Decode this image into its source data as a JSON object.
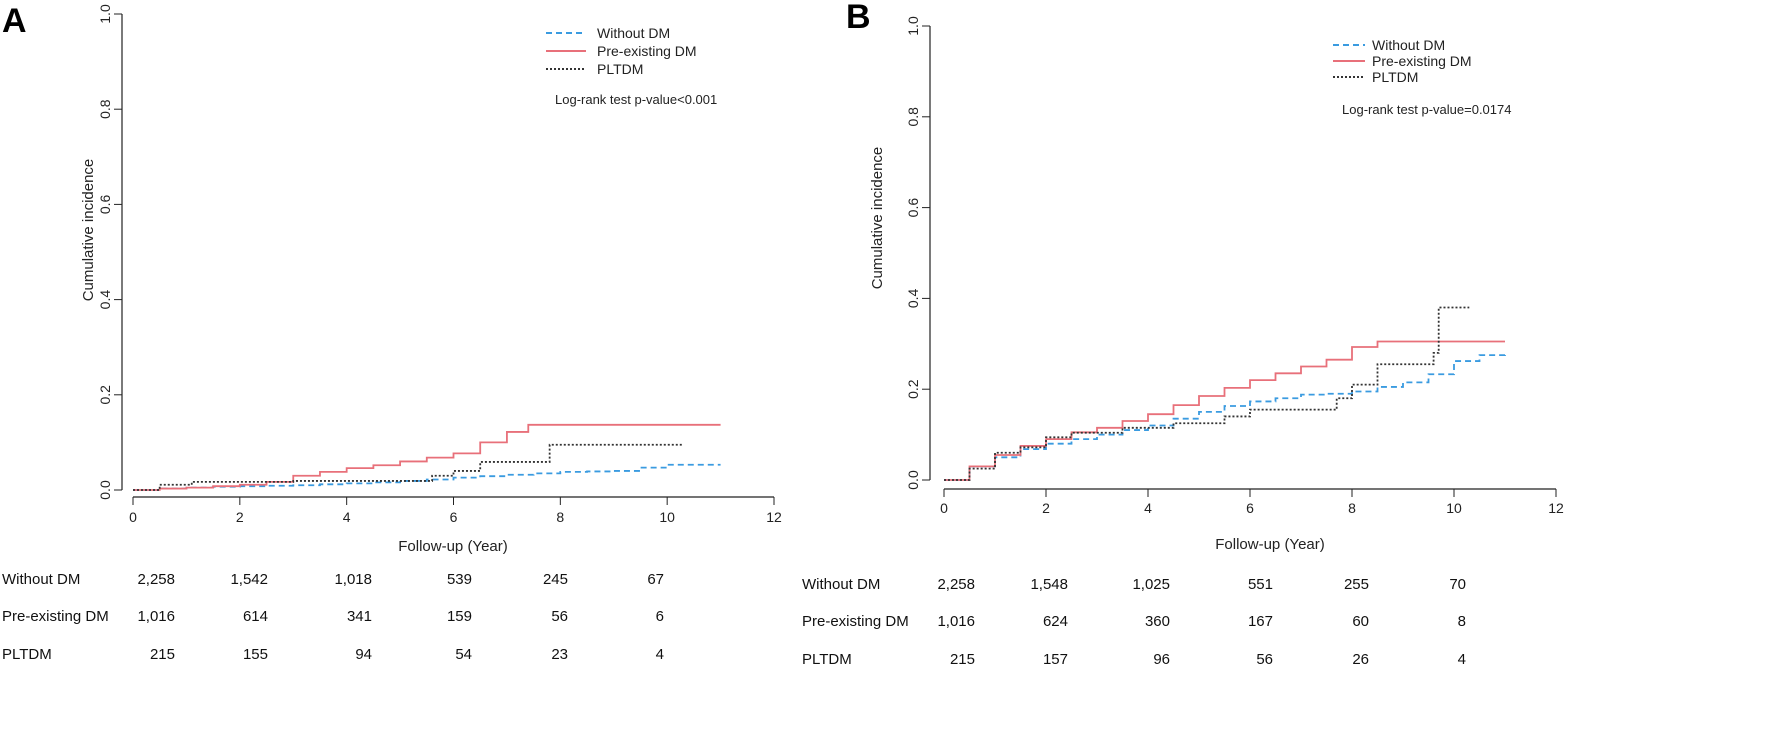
{
  "chart_data": [
    {
      "type": "line",
      "panel_label": "A",
      "xlabel": "Follow-up (Year)",
      "ylabel": "Cumulative incidence",
      "xlim": [
        0,
        12
      ],
      "ylim": [
        0,
        1.0
      ],
      "x_ticks": [
        "0",
        "2",
        "4",
        "6",
        "8",
        "10",
        "12"
      ],
      "y_ticks": [
        "0.0",
        "0.2",
        "0.4",
        "0.6",
        "0.8",
        "1.0"
      ],
      "grid": false,
      "legend_position": "top-right",
      "annotation": "Log-rank test p-value<0.001",
      "series": [
        {
          "name": "Without DM",
          "color": "#3a9be0",
          "dash": "dashed",
          "points": [
            [
              0,
              0
            ],
            [
              0.5,
              0.003
            ],
            [
              1.0,
              0.005
            ],
            [
              1.5,
              0.007
            ],
            [
              2.0,
              0.008
            ],
            [
              2.5,
              0.009
            ],
            [
              3.0,
              0.01
            ],
            [
              3.5,
              0.012
            ],
            [
              4.0,
              0.014
            ],
            [
              4.5,
              0.016
            ],
            [
              5.0,
              0.019
            ],
            [
              5.5,
              0.022
            ],
            [
              6.0,
              0.026
            ],
            [
              6.5,
              0.029
            ],
            [
              7.0,
              0.032
            ],
            [
              7.5,
              0.035
            ],
            [
              8.0,
              0.038
            ],
            [
              8.5,
              0.039
            ],
            [
              9.0,
              0.04
            ],
            [
              9.5,
              0.047
            ],
            [
              10.0,
              0.053
            ],
            [
              11.0,
              0.053
            ]
          ]
        },
        {
          "name": "Pre-existing DM",
          "color": "#e8707a",
          "dash": "solid",
          "points": [
            [
              0,
              0
            ],
            [
              0.5,
              0.003
            ],
            [
              1.0,
              0.005
            ],
            [
              1.5,
              0.008
            ],
            [
              2.0,
              0.011
            ],
            [
              2.5,
              0.017
            ],
            [
              3.0,
              0.03
            ],
            [
              3.5,
              0.038
            ],
            [
              4.0,
              0.046
            ],
            [
              4.5,
              0.052
            ],
            [
              5.0,
              0.06
            ],
            [
              5.5,
              0.068
            ],
            [
              6.0,
              0.077
            ],
            [
              6.5,
              0.1
            ],
            [
              7.0,
              0.122
            ],
            [
              7.4,
              0.137
            ],
            [
              8.0,
              0.137
            ],
            [
              9.0,
              0.137
            ],
            [
              10.0,
              0.137
            ],
            [
              11.0,
              0.137
            ]
          ]
        },
        {
          "name": "PLTDM",
          "color": "#333333",
          "dash": "dotted",
          "points": [
            [
              0,
              0
            ],
            [
              0.5,
              0.011
            ],
            [
              1.1,
              0.017
            ],
            [
              2.0,
              0.017
            ],
            [
              3.0,
              0.019
            ],
            [
              4.0,
              0.019
            ],
            [
              5.0,
              0.019
            ],
            [
              5.6,
              0.03
            ],
            [
              6.0,
              0.04
            ],
            [
              6.5,
              0.059
            ],
            [
              7.0,
              0.059
            ],
            [
              7.8,
              0.095
            ],
            [
              8.0,
              0.095
            ],
            [
              9.0,
              0.095
            ],
            [
              10.0,
              0.095
            ],
            [
              10.3,
              0.095
            ]
          ]
        }
      ],
      "risk_table": {
        "rows": [
          {
            "label": "Without DM",
            "values": [
              "2,258",
              "1,542",
              "1,018",
              "539",
              "245",
              "67"
            ]
          },
          {
            "label": "Pre-existing DM",
            "values": [
              "1,016",
              "614",
              "341",
              "159",
              "56",
              "6"
            ]
          },
          {
            "label": "PLTDM",
            "values": [
              "215",
              "155",
              "94",
              "54",
              "23",
              "4"
            ]
          }
        ]
      }
    },
    {
      "type": "line",
      "panel_label": "B",
      "xlabel": "Follow-up (Year)",
      "ylabel": "Cumulative incidence",
      "xlim": [
        0,
        12
      ],
      "ylim": [
        0,
        1.0
      ],
      "x_ticks": [
        "0",
        "2",
        "4",
        "6",
        "8",
        "10",
        "12"
      ],
      "y_ticks": [
        "0.0",
        "0.2",
        "0.4",
        "0.6",
        "0.8",
        "1.0"
      ],
      "grid": false,
      "legend_position": "top-right",
      "annotation": "Log-rank test p-value=0.0174",
      "series": [
        {
          "name": "Without DM",
          "color": "#3a9be0",
          "dash": "dashed",
          "points": [
            [
              0,
              0
            ],
            [
              0.5,
              0.03
            ],
            [
              1.0,
              0.05
            ],
            [
              1.5,
              0.068
            ],
            [
              2.0,
              0.08
            ],
            [
              2.5,
              0.09
            ],
            [
              3.0,
              0.1
            ],
            [
              3.5,
              0.11
            ],
            [
              4.0,
              0.12
            ],
            [
              4.5,
              0.135
            ],
            [
              5.0,
              0.15
            ],
            [
              5.5,
              0.163
            ],
            [
              6.0,
              0.173
            ],
            [
              6.5,
              0.18
            ],
            [
              7.0,
              0.188
            ],
            [
              7.5,
              0.19
            ],
            [
              8.0,
              0.195
            ],
            [
              8.5,
              0.205
            ],
            [
              9.0,
              0.215
            ],
            [
              9.5,
              0.233
            ],
            [
              10.0,
              0.262
            ],
            [
              10.5,
              0.275
            ],
            [
              11.0,
              0.277
            ]
          ]
        },
        {
          "name": "Pre-existing DM",
          "color": "#e8707a",
          "dash": "solid",
          "points": [
            [
              0,
              0
            ],
            [
              0.5,
              0.03
            ],
            [
              1.0,
              0.055
            ],
            [
              1.5,
              0.075
            ],
            [
              2.0,
              0.09
            ],
            [
              2.5,
              0.105
            ],
            [
              3.0,
              0.115
            ],
            [
              3.5,
              0.13
            ],
            [
              4.0,
              0.145
            ],
            [
              4.5,
              0.165
            ],
            [
              5.0,
              0.185
            ],
            [
              5.5,
              0.203
            ],
            [
              6.0,
              0.22
            ],
            [
              6.5,
              0.235
            ],
            [
              7.0,
              0.25
            ],
            [
              7.5,
              0.265
            ],
            [
              8.0,
              0.293
            ],
            [
              8.5,
              0.305
            ],
            [
              9.0,
              0.305
            ],
            [
              10.0,
              0.305
            ],
            [
              11.0,
              0.305
            ]
          ]
        },
        {
          "name": "PLTDM",
          "color": "#333333",
          "dash": "dotted",
          "points": [
            [
              0,
              0
            ],
            [
              0.5,
              0.025
            ],
            [
              1.0,
              0.06
            ],
            [
              1.5,
              0.072
            ],
            [
              2.0,
              0.094
            ],
            [
              2.5,
              0.104
            ],
            [
              3.0,
              0.104
            ],
            [
              3.5,
              0.115
            ],
            [
              4.0,
              0.115
            ],
            [
              4.5,
              0.125
            ],
            [
              5.0,
              0.125
            ],
            [
              5.5,
              0.14
            ],
            [
              6.0,
              0.155
            ],
            [
              6.5,
              0.155
            ],
            [
              7.0,
              0.155
            ],
            [
              7.7,
              0.18
            ],
            [
              8.0,
              0.21
            ],
            [
              8.5,
              0.255
            ],
            [
              9.0,
              0.255
            ],
            [
              9.6,
              0.28
            ],
            [
              9.7,
              0.38
            ],
            [
              10.3,
              0.38
            ]
          ]
        }
      ],
      "risk_table": {
        "rows": [
          {
            "label": "Without DM",
            "values": [
              "2,258",
              "1,548",
              "1,025",
              "551",
              "255",
              "70"
            ]
          },
          {
            "label": "Pre-existing DM",
            "values": [
              "1,016",
              "624",
              "360",
              "167",
              "60",
              "8"
            ]
          },
          {
            "label": "PLTDM",
            "values": [
              "215",
              "157",
              "96",
              "56",
              "26",
              "4"
            ]
          }
        ]
      }
    }
  ]
}
